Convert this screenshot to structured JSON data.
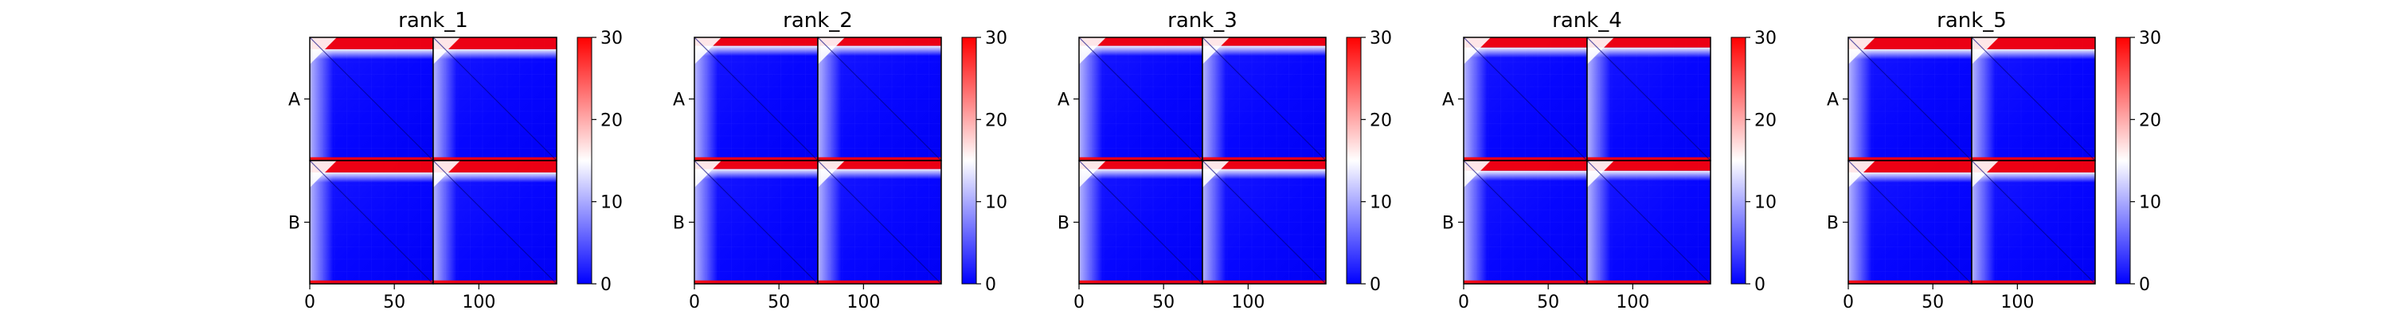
{
  "colors": {
    "low": "#0000ff",
    "mid": "#ffffff",
    "high": "#ff0000",
    "block_border": "#000000"
  },
  "chart_data": [
    {
      "type": "heatmap",
      "title": "rank_1",
      "rows": [
        "A",
        "B"
      ],
      "xticks": [
        0,
        50,
        100
      ],
      "xlim": [
        0,
        146
      ],
      "blocks": 2,
      "block_size": 73,
      "colorbar": {
        "min": 0,
        "max": 30,
        "ticks": [
          0,
          10,
          20,
          30
        ],
        "colormap": "bwr"
      },
      "top_band_width": 7,
      "bottom_band_width": 2
    },
    {
      "type": "heatmap",
      "title": "rank_2",
      "rows": [
        "A",
        "B"
      ],
      "xticks": [
        0,
        50,
        100
      ],
      "xlim": [
        0,
        146
      ],
      "blocks": 2,
      "block_size": 73,
      "colorbar": {
        "min": 0,
        "max": 30,
        "ticks": [
          0,
          10,
          20,
          30
        ],
        "colormap": "bwr"
      },
      "top_band_width": 5,
      "bottom_band_width": 2
    },
    {
      "type": "heatmap",
      "title": "rank_3",
      "rows": [
        "A",
        "B"
      ],
      "xticks": [
        0,
        50,
        100
      ],
      "xlim": [
        0,
        146
      ],
      "blocks": 2,
      "block_size": 73,
      "colorbar": {
        "min": 0,
        "max": 30,
        "ticks": [
          0,
          10,
          20,
          30
        ],
        "colormap": "bwr"
      },
      "top_band_width": 5,
      "bottom_band_width": 2
    },
    {
      "type": "heatmap",
      "title": "rank_4",
      "rows": [
        "A",
        "B"
      ],
      "xticks": [
        0,
        50,
        100
      ],
      "xlim": [
        0,
        146
      ],
      "blocks": 2,
      "block_size": 73,
      "colorbar": {
        "min": 0,
        "max": 30,
        "ticks": [
          0,
          10,
          20,
          30
        ],
        "colormap": "bwr"
      },
      "top_band_width": 6,
      "bottom_band_width": 2
    },
    {
      "type": "heatmap",
      "title": "rank_5",
      "rows": [
        "A",
        "B"
      ],
      "xticks": [
        0,
        50,
        100
      ],
      "xlim": [
        0,
        146
      ],
      "blocks": 2,
      "block_size": 73,
      "colorbar": {
        "min": 0,
        "max": 30,
        "ticks": [
          0,
          10,
          20,
          30
        ],
        "colormap": "bwr"
      },
      "top_band_width": 7,
      "bottom_band_width": 2
    }
  ]
}
